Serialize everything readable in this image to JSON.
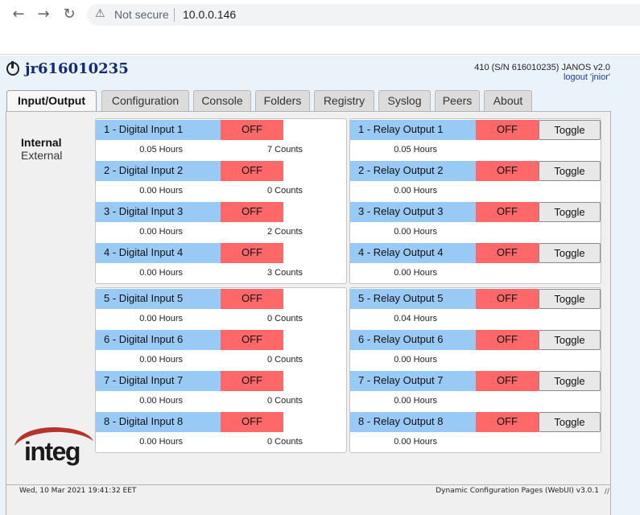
{
  "browser": {
    "security_label": "Not secure",
    "url": "10.0.0.146"
  },
  "header": {
    "hostname": "jr616010235",
    "device_info": "410 (S/N 616010235) JANOS v2.0",
    "logout_label": "logout 'jnior'"
  },
  "tabs": [
    {
      "label": "Input/Output",
      "active": true
    },
    {
      "label": "Configuration",
      "active": false
    },
    {
      "label": "Console",
      "active": false
    },
    {
      "label": "Folders",
      "active": false
    },
    {
      "label": "Registry",
      "active": false
    },
    {
      "label": "Syslog",
      "active": false
    },
    {
      "label": "Peers",
      "active": false
    },
    {
      "label": "About",
      "active": false
    }
  ],
  "sidebar": {
    "internal_label": "Internal",
    "external_label": "External"
  },
  "inputs": [
    {
      "label": "1 - Digital Input 1",
      "state": "OFF",
      "hours": "0.05 Hours",
      "counts": "7 Counts"
    },
    {
      "label": "2 - Digital Input 2",
      "state": "OFF",
      "hours": "0.00 Hours",
      "counts": "0 Counts"
    },
    {
      "label": "3 - Digital Input 3",
      "state": "OFF",
      "hours": "0.00 Hours",
      "counts": "2 Counts"
    },
    {
      "label": "4 - Digital Input 4",
      "state": "OFF",
      "hours": "0.00 Hours",
      "counts": "3 Counts"
    },
    {
      "label": "5 - Digital Input 5",
      "state": "OFF",
      "hours": "0.00 Hours",
      "counts": "0 Counts"
    },
    {
      "label": "6 - Digital Input 6",
      "state": "OFF",
      "hours": "0.00 Hours",
      "counts": "0 Counts"
    },
    {
      "label": "7 - Digital Input 7",
      "state": "OFF",
      "hours": "0.00 Hours",
      "counts": "0 Counts"
    },
    {
      "label": "8 - Digital Input 8",
      "state": "OFF",
      "hours": "0.00 Hours",
      "counts": "0 Counts"
    }
  ],
  "outputs": [
    {
      "label": "1 - Relay Output 1",
      "state": "OFF",
      "hours": "0.05 Hours",
      "button": "Toggle"
    },
    {
      "label": "2 - Relay Output 2",
      "state": "OFF",
      "hours": "0.00 Hours",
      "button": "Toggle"
    },
    {
      "label": "3 - Relay Output 3",
      "state": "OFF",
      "hours": "0.00 Hours",
      "button": "Toggle"
    },
    {
      "label": "4 - Relay Output 4",
      "state": "OFF",
      "hours": "0.00 Hours",
      "button": "Toggle"
    },
    {
      "label": "5 - Relay Output 5",
      "state": "OFF",
      "hours": "0.04 Hours",
      "button": "Toggle"
    },
    {
      "label": "6 - Relay Output 6",
      "state": "OFF",
      "hours": "0.00 Hours",
      "button": "Toggle"
    },
    {
      "label": "7 - Relay Output 7",
      "state": "OFF",
      "hours": "0.00 Hours",
      "button": "Toggle"
    },
    {
      "label": "8 - Relay Output 8",
      "state": "OFF",
      "hours": "0.00 Hours",
      "button": "Toggle"
    }
  ],
  "logo": {
    "text": "integ"
  },
  "footer": {
    "timestamp": "Wed, 10 Mar 2021 19:41:32 EET",
    "version": "Dynamic Configuration Pages (WebUI) v3.0.1"
  },
  "colors": {
    "label_blue": "#99caf5",
    "state_red": "#ff6868",
    "title_navy": "#122a78"
  }
}
